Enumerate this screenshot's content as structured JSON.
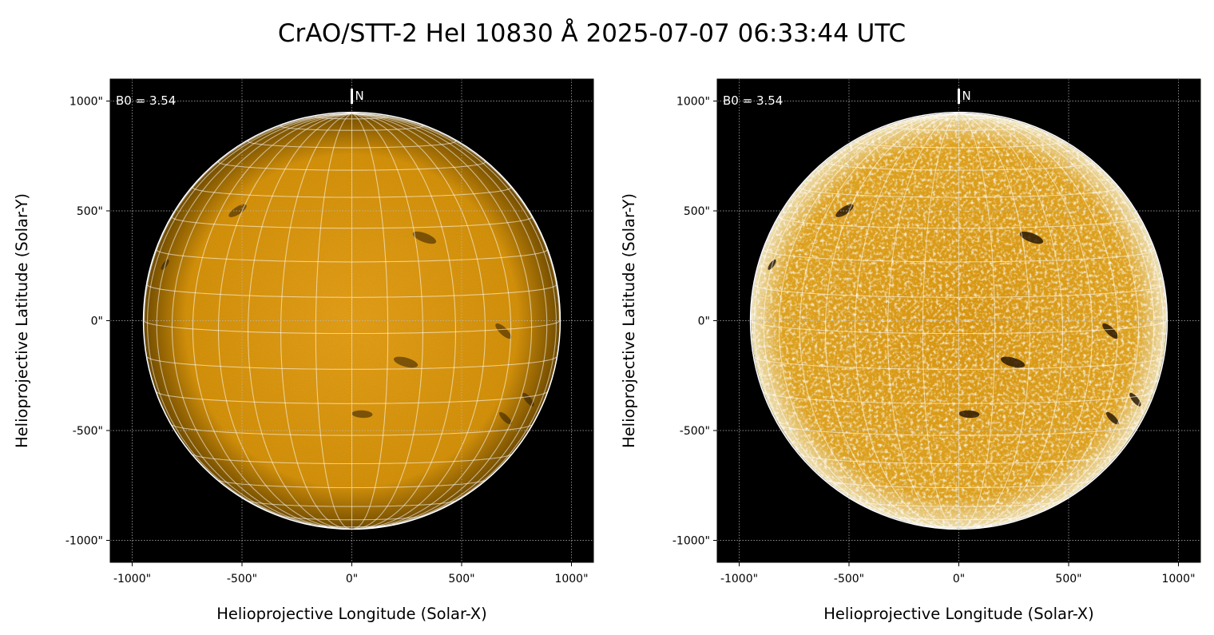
{
  "chart_data": {
    "type": "image",
    "title": "CrAO/STT-2 HeI 10830 Å 2025-07-07 06:33:44 UTC",
    "panels": [
      {
        "xlabel": "Helioprojective Longitude (Solar-X)",
        "ylabel": "Helioprojective Latitude (Solar-Y)",
        "annotation": "B0 = 3.54",
        "north_label": "N",
        "xlim": [
          -1100,
          1100
        ],
        "ylim": [
          -1100,
          1100
        ],
        "xticks": [
          "-1000\"",
          "-500\"",
          "0\"",
          "500\"",
          "1000\""
        ],
        "yticks": [
          "1000\"",
          "500\"",
          "0\"",
          "-500\"",
          "-1000\""
        ],
        "grid": true,
        "colormap": "orange",
        "contrast": "normal"
      },
      {
        "xlabel": "Helioprojective Longitude (Solar-X)",
        "ylabel": "Helioprojective Latitude (Solar-Y)",
        "annotation": "B0 = 3.54",
        "north_label": "N",
        "xlim": [
          -1100,
          1100
        ],
        "ylim": [
          -1100,
          1100
        ],
        "xticks": [
          "-1000\"",
          "-500\"",
          "0\"",
          "500\"",
          "1000\""
        ],
        "yticks": [
          "1000\"",
          "500\"",
          "0\"",
          "-500\"",
          "-1000\""
        ],
        "grid": true,
        "colormap": "orange",
        "contrast": "enhanced"
      }
    ],
    "solar_radius_arcsec": 945,
    "b0_deg": 3.54,
    "colors": {
      "disk": "#e39a10",
      "grid": "#ffffff",
      "background": "#000000"
    }
  }
}
